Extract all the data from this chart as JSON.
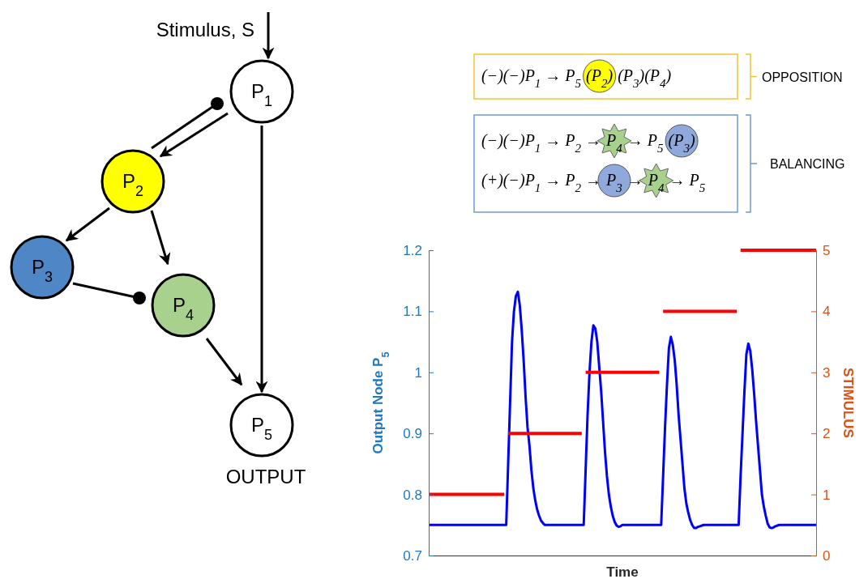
{
  "chart_data": {
    "type": "line",
    "xlabel": "Time",
    "ylabel": "Output Node P$_{5}$",
    "y2label": "STIMULUS",
    "categories": [
      null,
      null,
      null,
      null,
      null,
      null,
      null,
      null,
      null,
      null,
      null,
      null,
      null,
      null,
      null,
      null,
      null,
      null,
      null,
      null,
      null,
      null,
      null,
      null,
      null,
      null,
      null,
      null,
      null,
      null,
      null,
      null,
      null,
      null,
      null,
      null,
      null,
      null,
      null,
      null,
      null,
      null,
      null,
      null,
      null,
      null,
      null,
      null,
      null,
      null,
      null,
      null,
      null,
      null,
      null,
      null,
      null,
      null,
      null,
      null,
      null,
      null,
      null,
      null,
      null,
      null,
      null,
      null,
      null,
      null,
      null,
      null,
      null,
      null,
      null,
      null,
      null,
      null,
      null,
      null,
      null,
      null,
      null,
      null,
      null,
      null,
      null,
      null,
      null,
      null,
      null,
      null,
      null,
      null,
      null,
      null,
      null,
      null,
      null,
      null,
      null,
      null,
      null,
      null,
      null,
      null,
      null,
      null,
      null,
      null,
      null,
      null,
      null,
      null,
      null,
      null,
      null,
      null,
      null,
      null,
      null,
      null,
      null,
      null,
      null,
      null,
      null,
      null,
      null,
      null,
      null,
      null,
      null,
      null,
      null,
      null,
      null,
      null,
      null,
      null,
      null,
      null,
      null,
      null,
      null,
      null,
      null,
      null,
      null,
      null,
      null,
      null,
      null,
      null,
      null,
      null,
      null,
      null,
      null,
      null,
      null,
      null,
      null,
      null,
      null,
      null,
      null,
      null,
      null,
      null,
      null,
      null,
      null,
      null,
      null,
      null,
      null,
      null,
      null,
      null,
      null,
      null,
      null,
      null,
      null,
      null,
      null,
      null,
      null,
      null,
      null,
      null,
      null,
      null,
      null,
      null,
      null,
      null,
      null,
      null,
      null
    ],
    "ylim": [
      0.7,
      1.2
    ],
    "yticks": [
      {
        "value": 0.7,
        "label": "0.7"
      },
      {
        "value": 0.8,
        "label": "0.8"
      },
      {
        "value": 0.9,
        "label": "0.9"
      },
      {
        "value": 1,
        "label": "1"
      },
      {
        "value": 1.1,
        "label": "1.1"
      },
      {
        "value": 1.2,
        "label": "1.2"
      }
    ],
    "y2lim": [
      0,
      5
    ],
    "y2ticks": [
      0,
      1,
      2,
      3,
      4,
      5
    ],
    "series": [
      {
        "color": "#0000ff",
        "values": [
          0.75,
          0.75,
          0.75,
          0.75,
          0.75,
          0.75,
          0.75,
          0.75,
          0.75,
          0.75,
          0.75,
          0.75,
          0.75,
          0.75,
          0.75,
          0.75,
          0.75,
          0.75,
          0.75,
          0.75,
          0.75,
          0.75,
          0.75,
          0.75,
          0.75,
          0.75,
          0.75,
          0.75,
          0.75,
          0.75,
          0.75,
          0.75,
          0.75,
          0.75,
          0.75,
          0.75,
          0.75,
          0.75,
          0.75,
          0.75,
          0.75,
          0.85,
          0.95,
          1.05,
          1.1,
          1.125,
          1.132,
          1.11,
          1.07,
          1.02,
          0.96,
          0.91,
          0.88,
          0.84,
          0.81,
          0.79,
          0.775,
          0.765,
          0.757,
          0.753,
          0.75,
          0.75,
          0.75,
          0.75,
          0.75,
          0.75,
          0.75,
          0.75,
          0.75,
          0.75,
          0.75,
          0.75,
          0.75,
          0.75,
          0.75,
          0.75,
          0.75,
          0.75,
          0.75,
          0.75,
          0.75,
          0.84,
          0.93,
          1,
          1.05,
          1.077,
          1.072,
          1.05,
          1.01,
          0.97,
          0.92,
          0.87,
          0.83,
          0.8,
          0.78,
          0.765,
          0.755,
          0.749,
          0.747,
          0.748,
          0.75,
          0.75,
          0.75,
          0.75,
          0.75,
          0.75,
          0.75,
          0.75,
          0.75,
          0.75,
          0.75,
          0.75,
          0.75,
          0.75,
          0.75,
          0.75,
          0.75,
          0.75,
          0.75,
          0.75,
          0.75,
          0.83,
          0.91,
          0.98,
          1.04,
          1.058,
          1.045,
          1.02,
          0.98,
          0.93,
          0.89,
          0.85,
          0.81,
          0.785,
          0.77,
          0.758,
          0.75,
          0.745,
          0.745,
          0.747,
          0.748,
          0.749,
          0.75,
          0.75,
          0.75,
          0.75,
          0.75,
          0.75,
          0.75,
          0.75,
          0.75,
          0.75,
          0.75,
          0.75,
          0.75,
          0.75,
          0.75,
          0.75,
          0.75,
          0.75,
          0.75,
          0.83,
          0.9,
          0.97,
          1.03,
          1.047,
          1.035,
          1.005,
          0.965,
          0.92,
          0.88,
          0.84,
          0.8,
          0.78,
          0.765,
          0.752,
          0.746,
          0.745,
          0.746,
          0.748,
          0.749,
          0.75,
          0.75,
          0.75,
          0.75,
          0.75,
          0.75,
          0.75,
          0.75,
          0.75,
          0.75,
          0.75,
          0.75,
          0.75,
          0.75,
          0.75,
          0.75,
          0.75,
          0.75,
          0.75,
          0.75
        ]
      },
      {
        "axis": "y2",
        "color": "#ff0000",
        "values": [
          1,
          1,
          1,
          1,
          1,
          1,
          1,
          1,
          1,
          1,
          1,
          1,
          1,
          1,
          1,
          1,
          1,
          1,
          1,
          1,
          1,
          1,
          1,
          1,
          1,
          1,
          1,
          1,
          1,
          1,
          1,
          1,
          1,
          1,
          1,
          1,
          1,
          1,
          1,
          1,
          null,
          2,
          2,
          2,
          2,
          2,
          2,
          2,
          2,
          2,
          2,
          2,
          2,
          2,
          2,
          2,
          2,
          2,
          2,
          2,
          2,
          2,
          2,
          2,
          2,
          2,
          2,
          2,
          2,
          2,
          2,
          2,
          2,
          2,
          2,
          2,
          2,
          2,
          2,
          2,
          null,
          3,
          3,
          3,
          3,
          3,
          3,
          3,
          3,
          3,
          3,
          3,
          3,
          3,
          3,
          3,
          3,
          3,
          3,
          3,
          3,
          3,
          3,
          3,
          3,
          3,
          3,
          3,
          3,
          3,
          3,
          3,
          3,
          3,
          3,
          3,
          3,
          3,
          3,
          3,
          null,
          4,
          4,
          4,
          4,
          4,
          4,
          4,
          4,
          4,
          4,
          4,
          4,
          4,
          4,
          4,
          4,
          4,
          4,
          4,
          4,
          4,
          4,
          4,
          4,
          4,
          4,
          4,
          4,
          4,
          4,
          4,
          4,
          4,
          4,
          4,
          4,
          4,
          4,
          4,
          null,
          5,
          5,
          5,
          5,
          5,
          5,
          5,
          5,
          5,
          5,
          5,
          5,
          5,
          5,
          5,
          5,
          5,
          5,
          5,
          5,
          5,
          5,
          5,
          5,
          5,
          5,
          5,
          5,
          5,
          5,
          5,
          5,
          5,
          5,
          5,
          5,
          5,
          5,
          5,
          5
        ]
      }
    ],
    "annotations": [
      "Stimulus, S",
      "P$_{1}$",
      "P$_{2}$",
      "P$_{3}$",
      "P$_{4}$",
      "P$_{5}$",
      "OUTPUT",
      "(−)(−)P$_{1}$ → P$_{5}$",
      "(P$_{2}$)",
      "(P$_{3}$)(P$_{4}$)",
      "(−)(−)P$_{1}$ → P$_{2}$ →",
      "P$_{4}$",
      "→ P$_{5}$",
      "(P$_{3}$)",
      "(+)(−)P$_{1}$ → P$_{2}$ →",
      "P$_{3}$",
      "→",
      "P$_{4}$",
      "→ P$_{5}$",
      "OPPOSITION",
      "BALANCING"
    ]
  }
}
